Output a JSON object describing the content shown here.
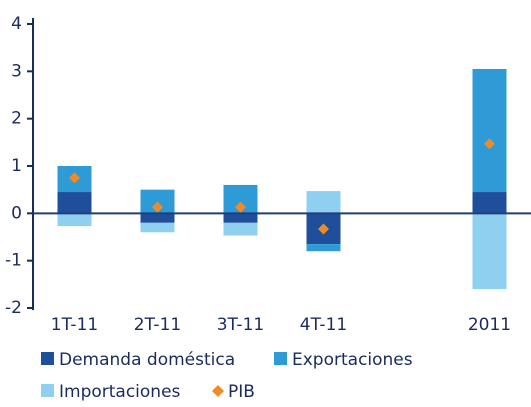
{
  "chart_data": {
    "type": "bar",
    "stacked": true,
    "categories": [
      "1T-11",
      "2T-11",
      "3T-11",
      "4T-11",
      null,
      "2011"
    ],
    "series": [
      {
        "name": "Demanda doméstica",
        "color": "#1f4e9b",
        "values": [
          0.45,
          -0.2,
          -0.2,
          -0.65,
          null,
          0.45
        ]
      },
      {
        "name": "Exportaciones",
        "color": "#2e9bd6",
        "values": [
          0.55,
          0.5,
          0.6,
          -0.15,
          null,
          2.6
        ]
      },
      {
        "name": "Importaciones",
        "color": "#8fd0f0",
        "values": [
          -0.27,
          -0.2,
          -0.27,
          0.47,
          null,
          -1.6
        ]
      },
      {
        "name": "PIB",
        "type": "scatter",
        "marker": "diamond",
        "color": "#f08a24",
        "values": [
          0.75,
          0.13,
          0.13,
          -0.33,
          null,
          1.47
        ]
      }
    ],
    "ylim": [
      -2,
      4
    ],
    "yticks": [
      -2,
      -1,
      0,
      1,
      2,
      3,
      4
    ]
  }
}
